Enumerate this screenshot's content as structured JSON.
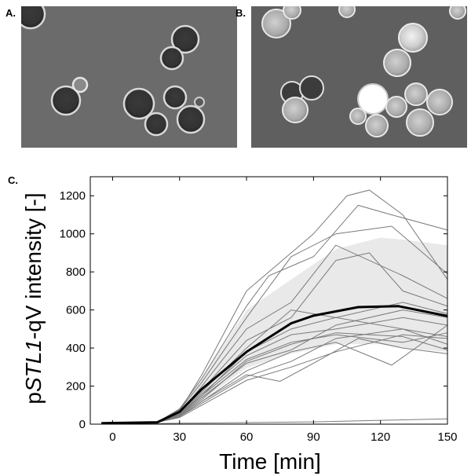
{
  "panels": {
    "a": {
      "label": "A."
    },
    "b": {
      "label": "B."
    },
    "c": {
      "label": "C."
    }
  },
  "chart_data": {
    "type": "line",
    "xlabel": "Time [min]",
    "ylabel_parts": [
      "p",
      "STL1",
      "-qV intensity [-]"
    ],
    "xlim": [
      -10,
      150
    ],
    "ylim": [
      0,
      1300
    ],
    "xticks": [
      0,
      30,
      60,
      90,
      120,
      150
    ],
    "yticks": [
      0,
      200,
      400,
      600,
      800,
      1000,
      1200
    ],
    "grid": false,
    "legend": "none",
    "band": {
      "x": [
        -5,
        20,
        30,
        40,
        60,
        80,
        100,
        120,
        130,
        150
      ],
      "upper": [
        5,
        10,
        85,
        245,
        600,
        760,
        920,
        980,
        970,
        940
      ],
      "lower": [
        2,
        5,
        45,
        125,
        295,
        370,
        420,
        420,
        400,
        380
      ]
    },
    "mean": {
      "x": [
        -5,
        20,
        30,
        40,
        60,
        80,
        90,
        110,
        128,
        150
      ],
      "y": [
        5,
        10,
        65,
        185,
        380,
        530,
        570,
        615,
        620,
        568
      ]
    },
    "traces": [
      {
        "x": [
          -5,
          20,
          30,
          40,
          60,
          70,
          90,
          105,
          115,
          130,
          150
        ],
        "y": [
          5,
          10,
          70,
          260,
          700,
          800,
          1000,
          1200,
          1230,
          1100,
          760
        ]
      },
      {
        "x": [
          -5,
          20,
          30,
          40,
          60,
          70,
          90,
          110,
          125,
          150
        ],
        "y": [
          5,
          10,
          80,
          240,
          620,
          780,
          880,
          1150,
          1100,
          1020
        ]
      },
      {
        "x": [
          -5,
          20,
          30,
          40,
          60,
          80,
          100,
          125,
          150
        ],
        "y": [
          5,
          10,
          75,
          220,
          560,
          880,
          1000,
          1040,
          790
        ]
      },
      {
        "x": [
          -5,
          20,
          30,
          40,
          60,
          80,
          100,
          130,
          150
        ],
        "y": [
          5,
          10,
          60,
          200,
          500,
          640,
          940,
          780,
          660
        ]
      },
      {
        "x": [
          -5,
          20,
          30,
          40,
          60,
          80,
          100,
          115,
          130,
          150
        ],
        "y": [
          5,
          10,
          65,
          180,
          440,
          560,
          860,
          900,
          700,
          620
        ]
      },
      {
        "x": [
          -5,
          20,
          30,
          40,
          60,
          80,
          100,
          130,
          150
        ],
        "y": [
          5,
          10,
          55,
          170,
          400,
          600,
          560,
          640,
          580
        ]
      },
      {
        "x": [
          -5,
          20,
          30,
          40,
          60,
          80,
          100,
          130,
          150
        ],
        "y": [
          5,
          10,
          50,
          160,
          360,
          470,
          500,
          560,
          520
        ]
      },
      {
        "x": [
          -5,
          20,
          30,
          40,
          60,
          80,
          100,
          130,
          150
        ],
        "y": [
          5,
          10,
          50,
          150,
          340,
          430,
          470,
          430,
          480
        ]
      },
      {
        "x": [
          -5,
          20,
          30,
          40,
          60,
          80,
          100,
          130,
          150
        ],
        "y": [
          5,
          10,
          45,
          140,
          320,
          390,
          520,
          600,
          560
        ]
      },
      {
        "x": [
          -5,
          20,
          30,
          40,
          60,
          80,
          100,
          125,
          150
        ],
        "y": [
          5,
          10,
          40,
          120,
          280,
          380,
          430,
          310,
          520
        ]
      },
      {
        "x": [
          -5,
          20,
          30,
          40,
          60,
          80,
          100,
          130,
          150
        ],
        "y": [
          5,
          10,
          40,
          110,
          250,
          330,
          450,
          500,
          460
        ]
      },
      {
        "x": [
          -5,
          20,
          30,
          40,
          60,
          80,
          100,
          130,
          150
        ],
        "y": [
          5,
          10,
          35,
          100,
          230,
          300,
          380,
          470,
          450
        ]
      },
      {
        "x": [
          -5,
          20,
          30,
          40,
          60,
          75,
          90,
          110,
          130,
          150
        ],
        "y": [
          5,
          10,
          40,
          120,
          260,
          225,
          320,
          450,
          400,
          370
        ]
      },
      {
        "x": [
          -5,
          20,
          30,
          40,
          60,
          80,
          100,
          130,
          150
        ],
        "y": [
          5,
          10,
          50,
          150,
          380,
          500,
          560,
          500,
          420
        ]
      },
      {
        "x": [
          -5,
          20,
          30,
          40,
          60,
          80,
          100,
          130,
          150
        ],
        "y": [
          5,
          10,
          45,
          130,
          330,
          420,
          480,
          460,
          390
        ]
      },
      {
        "x": [
          -5,
          20,
          30,
          60,
          90,
          120,
          150
        ],
        "y": [
          2,
          3,
          5,
          8,
          12,
          20,
          28
        ]
      }
    ]
  }
}
